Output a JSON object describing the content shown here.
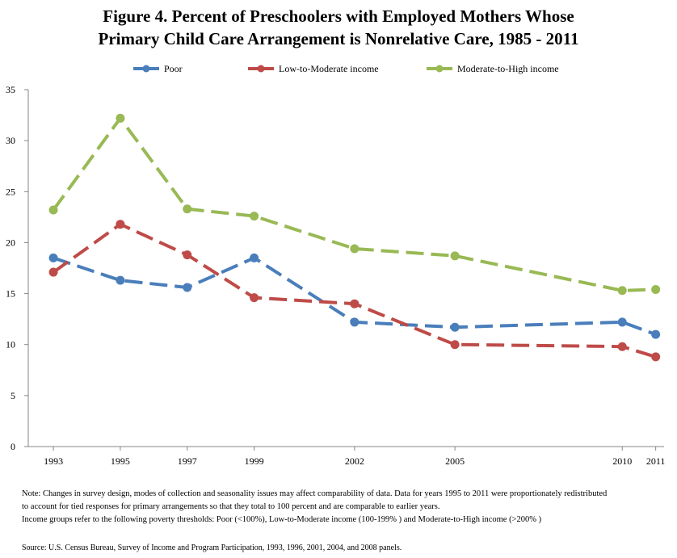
{
  "title_line1": "Figure 4. Percent of Preschoolers with Employed Mothers Whose",
  "title_line2": "Primary Child Care Arrangement is Nonrelative Care, 1985 - 2011",
  "notes": {
    "line1": "Note: Changes in survey design, modes of collection and seasonality issues may affect comparability of data. Data for years 1995 to 2011 were proportionately redistributed",
    "line2": "to account for tied responses for primary arrangements so that they total to 100 percent and are comparable to earlier years.",
    "line3": "Income groups refer to the following poverty thresholds: Poor (<100%), Low-to-Moderate income (100-199% ) and Moderate-to-High income (>200% )"
  },
  "source": "Source: U.S. Census Bureau, Survey of Income and Program Participation, 1993, 1996, 2001, 2004, and 2008 panels.",
  "chart_data": {
    "type": "line",
    "title": "Figure 4. Percent of Preschoolers with Employed Mothers Whose Primary Child Care Arrangement is Nonrelative Care, 1985 - 2011",
    "x": [
      1993,
      1995,
      1997,
      1999,
      2002,
      2005,
      2010,
      2011
    ],
    "x_tick_labels": [
      "1993",
      "1995",
      "1997",
      "1999",
      "2002",
      "2005",
      "2010",
      "2011"
    ],
    "ylim": [
      0,
      35
    ],
    "y_ticks": [
      0,
      5,
      10,
      15,
      20,
      25,
      30,
      35
    ],
    "grid": false,
    "legend_position": "top",
    "line_style": "dashed",
    "series": [
      {
        "name": "Poor",
        "color": "#4a7ebb",
        "values": [
          18.5,
          16.3,
          15.6,
          18.5,
          12.2,
          11.7,
          12.2,
          11.0
        ]
      },
      {
        "name": "Low-to-Moderate income",
        "color": "#be4b48",
        "values": [
          17.1,
          21.8,
          18.8,
          14.6,
          14.0,
          10.0,
          9.8,
          8.8
        ]
      },
      {
        "name": "Moderate-to-High income",
        "color": "#98b954",
        "values": [
          23.2,
          32.2,
          23.3,
          22.6,
          19.4,
          18.7,
          15.3,
          15.4
        ]
      }
    ]
  }
}
